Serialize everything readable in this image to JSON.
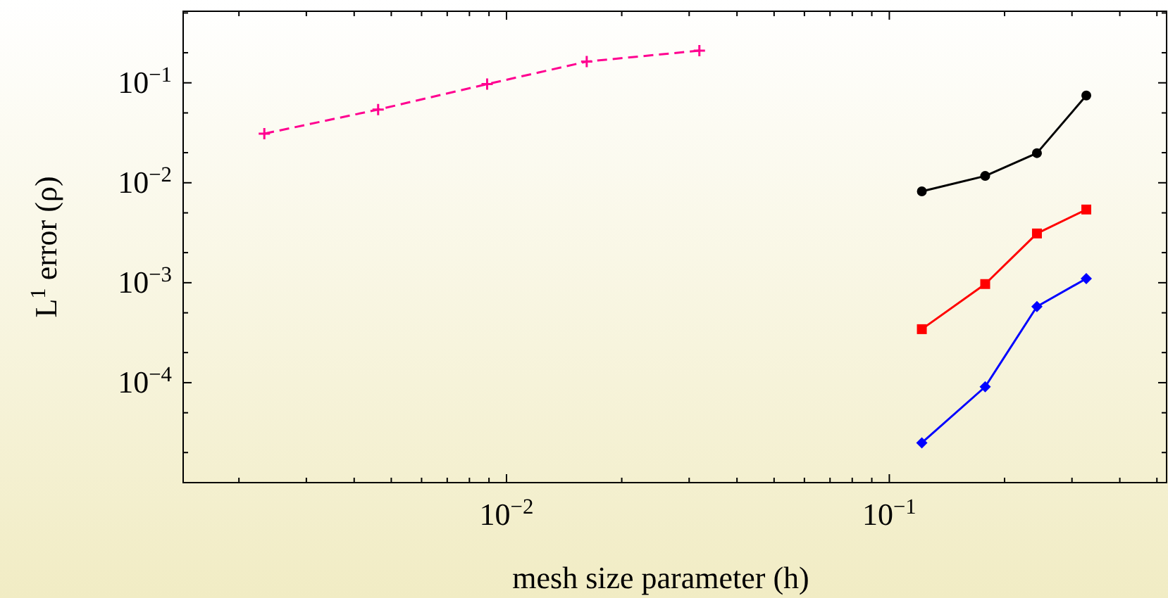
{
  "chart_data": {
    "type": "line",
    "xlabel": "mesh size parameter (h)",
    "ylabel": "L$^{1}$ error (ρ)",
    "log": "xy",
    "grid": false,
    "xlim": [
      0.00143,
      0.53
    ],
    "ylim": [
      1e-05,
      0.52
    ],
    "xticks": [
      {
        "value": 0.002,
        "label": null
      },
      {
        "value": 0.003,
        "label": null
      },
      {
        "value": 0.004,
        "label": null
      },
      {
        "value": 0.005,
        "label": null
      },
      {
        "value": 0.006,
        "label": null
      },
      {
        "value": 0.007,
        "label": null
      },
      {
        "value": 0.008,
        "label": null
      },
      {
        "value": 0.009,
        "label": null
      },
      {
        "value": 0.01,
        "label": "10$^{−2}$"
      },
      {
        "value": 0.02,
        "label": null
      },
      {
        "value": 0.03,
        "label": null
      },
      {
        "value": 0.04,
        "label": null
      },
      {
        "value": 0.05,
        "label": null
      },
      {
        "value": 0.06,
        "label": null
      },
      {
        "value": 0.07,
        "label": null
      },
      {
        "value": 0.08,
        "label": null
      },
      {
        "value": 0.09,
        "label": null
      },
      {
        "value": 0.1,
        "label": "10$^{−1}$"
      },
      {
        "value": 0.2,
        "label": null
      },
      {
        "value": 0.3,
        "label": null
      },
      {
        "value": 0.4,
        "label": null
      },
      {
        "value": 0.5,
        "label": null
      }
    ],
    "yticks": [
      {
        "value": 0.0001,
        "label": "10$^{−4}$"
      },
      {
        "value": 0.001,
        "label": "10$^{−3}$"
      },
      {
        "value": 0.01,
        "label": "10$^{−2}$"
      },
      {
        "value": 0.1,
        "label": "10$^{−1}$"
      },
      {
        "value": 2e-05,
        "label": null
      },
      {
        "value": 5e-05,
        "label": null
      },
      {
        "value": 0.0002,
        "label": null
      },
      {
        "value": 0.0005,
        "label": null
      },
      {
        "value": 0.002,
        "label": null
      },
      {
        "value": 0.005,
        "label": null
      },
      {
        "value": 0.02,
        "label": null
      },
      {
        "value": 0.05,
        "label": null
      },
      {
        "value": 0.2,
        "label": null
      },
      {
        "value": 0.5,
        "label": null
      }
    ],
    "series": [
      {
        "color": "#ff0090",
        "marker": "cross",
        "line_style": "dashed",
        "x": [
          0.00233,
          0.00462,
          0.0089,
          0.0162,
          0.0319
        ],
        "values": [
          0.031,
          0.054,
          0.097,
          0.163,
          0.21
        ]
      },
      {
        "color": "#000000",
        "marker": "circle",
        "line_style": "solid",
        "x": [
          0.1216,
          0.178,
          0.243,
          0.327
        ],
        "values": [
          0.0082,
          0.0117,
          0.0198,
          0.0747
        ]
      },
      {
        "color": "#ff0000",
        "marker": "square",
        "line_style": "solid",
        "x": [
          0.1216,
          0.178,
          0.243,
          0.327
        ],
        "values": [
          0.000343,
          0.00097,
          0.00311,
          0.0054
        ]
      },
      {
        "color": "#0000ff",
        "marker": "diamond",
        "line_style": "solid",
        "x": [
          0.1216,
          0.178,
          0.243,
          0.327
        ],
        "values": [
          2.5e-05,
          9.1e-05,
          0.000577,
          0.0011
        ]
      }
    ]
  }
}
